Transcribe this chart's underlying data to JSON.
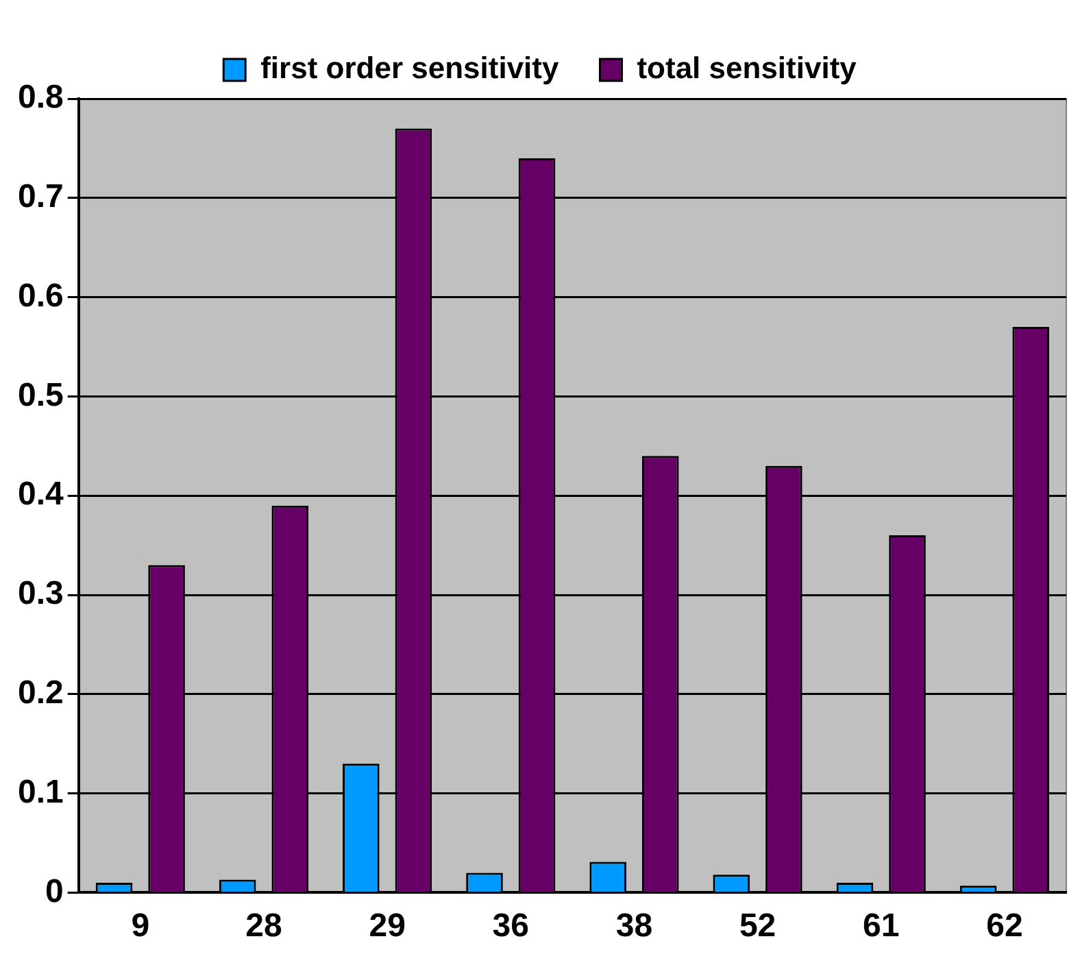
{
  "chart_data": {
    "type": "bar",
    "categories": [
      "9",
      "28",
      "29",
      "36",
      "38",
      "52",
      "61",
      "62"
    ],
    "series": [
      {
        "name": "first order sensitivity",
        "color": "#0099ff",
        "values": [
          0.01,
          0.013,
          0.13,
          0.02,
          0.031,
          0.018,
          0.01,
          0.007
        ]
      },
      {
        "name": "total sensitivity",
        "color": "#660066",
        "values": [
          0.33,
          0.39,
          0.77,
          0.74,
          0.44,
          0.43,
          0.36,
          0.57
        ]
      }
    ],
    "ylim": [
      0,
      0.8
    ],
    "yticks": [
      0,
      0.1,
      0.2,
      0.3,
      0.4,
      0.5,
      0.6,
      0.7,
      0.8
    ],
    "grid": "y",
    "legend": "top"
  }
}
